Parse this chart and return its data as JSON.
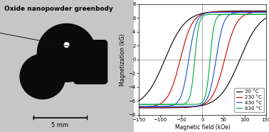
{
  "title_left": "Oxide nanopowder greenbody",
  "xlabel": "Magnetic field (kOe)",
  "ylabel": "Magnetization (kG)",
  "xlim": [
    -150,
    150
  ],
  "ylim": [
    -8,
    8
  ],
  "xticks": [
    -150,
    -100,
    -50,
    0,
    50,
    100,
    150
  ],
  "yticks": [
    -8,
    -6,
    -4,
    -2,
    0,
    2,
    4,
    6,
    8
  ],
  "curves": [
    {
      "label": "30 °C",
      "color": "#000000",
      "Hc": 88,
      "Ms": 7.0,
      "k": 0.55
    },
    {
      "label": "230 °C",
      "color": "#cc0000",
      "Hc": 52,
      "Ms": 6.9,
      "k": 0.55
    },
    {
      "label": "430 °C",
      "color": "#1a4fcc",
      "Hc": 32,
      "Ms": 6.8,
      "k": 0.55
    },
    {
      "label": "630 °C",
      "color": "#00aa44",
      "Hc": 18,
      "Ms": 6.5,
      "k": 0.55
    }
  ],
  "scale_bar_label": "5 mm",
  "bg_color_light": "#c8c8b8",
  "bg_color_dark": "#a8a898",
  "shape_color": "#0a0a0a",
  "wire_color": "#111111"
}
